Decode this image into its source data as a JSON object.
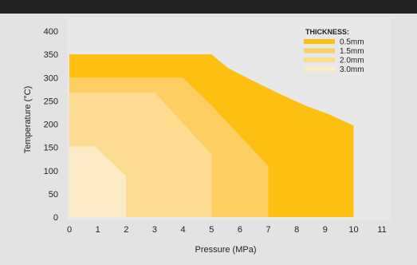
{
  "chart_data": {
    "type": "area",
    "xlabel": "Pressure (MPa)",
    "ylabel": "Temperature (°C)",
    "xlim": [
      0,
      11
    ],
    "ylim": [
      0,
      400
    ],
    "x_ticks": [
      "0",
      "1",
      "2",
      "3",
      "4",
      "5",
      "6",
      "7",
      "8",
      "9",
      "10",
      "11"
    ],
    "y_ticks": [
      "0",
      "50",
      "100",
      "150",
      "200",
      "250",
      "300",
      "350",
      "400"
    ],
    "legend_title": "THICKNESS:",
    "legend_position": "top-right",
    "grid": false,
    "series": [
      {
        "name": "0.5mm",
        "color": "#fcbf12",
        "points": [
          [
            0,
            0
          ],
          [
            0,
            350
          ],
          [
            5,
            350
          ],
          [
            5.6,
            320
          ],
          [
            6.4,
            295
          ],
          [
            7.4,
            265
          ],
          [
            8.3,
            240
          ],
          [
            9.1,
            222
          ],
          [
            10,
            197
          ],
          [
            10,
            0
          ]
        ]
      },
      {
        "name": "1.5mm",
        "color": "#fdcf62",
        "points": [
          [
            0,
            0
          ],
          [
            0,
            300
          ],
          [
            4,
            300
          ],
          [
            5,
            240
          ],
          [
            7,
            110
          ],
          [
            7,
            0
          ]
        ]
      },
      {
        "name": "2.0mm",
        "color": "#fddb91",
        "points": [
          [
            0,
            0
          ],
          [
            0,
            268
          ],
          [
            3,
            268
          ],
          [
            5,
            135
          ],
          [
            5,
            0
          ]
        ]
      },
      {
        "name": "3.0mm",
        "color": "#fdebc6",
        "points": [
          [
            0,
            0
          ],
          [
            0,
            152
          ],
          [
            0.9,
            152
          ],
          [
            2,
            88
          ],
          [
            2,
            0
          ]
        ]
      }
    ]
  }
}
